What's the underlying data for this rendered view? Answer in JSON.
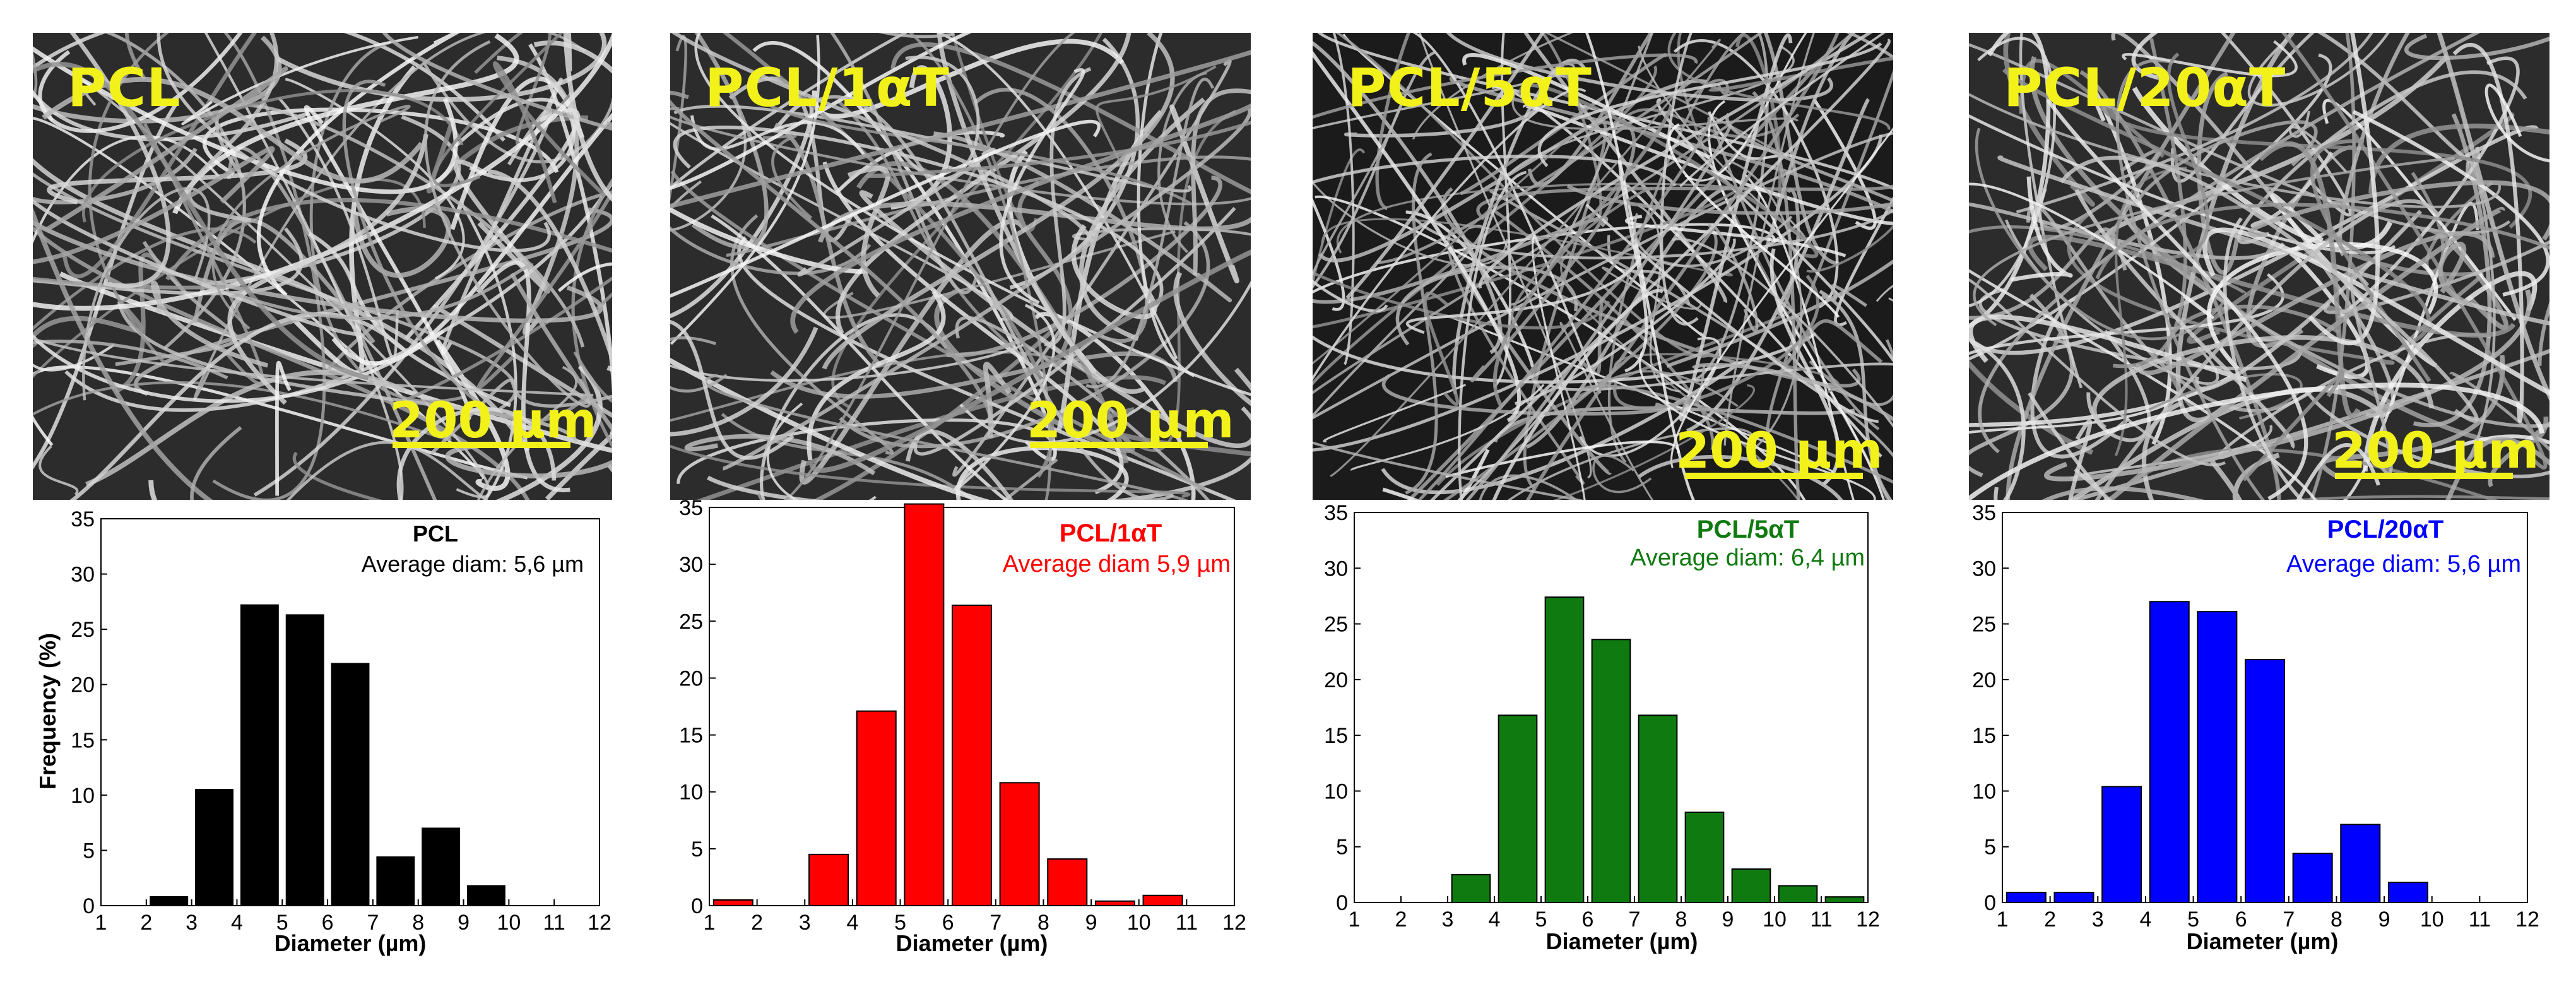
{
  "colors": {
    "pcl": "#000000",
    "pcl_1at": "#ff0000",
    "pcl_5at": "#0f7a0f",
    "pcl_20at": "#0000ff",
    "scale_label": "#f2f21a"
  },
  "panels": [
    {
      "micrograph": {
        "label": "PCL",
        "scale_text": "200 µm"
      },
      "chart": {
        "legend_name": "PCL",
        "legend_avg": "Average diam: 5,6 µm"
      }
    },
    {
      "micrograph": {
        "label": "PCL/1αT",
        "scale_text": "200 µm"
      },
      "chart": {
        "legend_name": "PCL/1αT",
        "legend_avg": "Average diam 5,9 µm"
      }
    },
    {
      "micrograph": {
        "label": "PCL/5αT",
        "scale_text": "200 µm"
      },
      "chart": {
        "legend_name": "PCL/5αT",
        "legend_avg": "Average diam: 6,4 µm"
      }
    },
    {
      "micrograph": {
        "label": "PCL/20αT",
        "scale_text": "200 µm"
      },
      "chart": {
        "legend_name": "PCL/20αT",
        "legend_avg": "Average diam: 5,6 µm"
      }
    }
  ],
  "chart_data": [
    {
      "type": "bar",
      "series": [
        {
          "name": "PCL",
          "color": "#000000",
          "x": [
            2.5,
            3.5,
            4.5,
            5.5,
            6.5,
            7.5,
            8.5,
            9.5
          ],
          "values": [
            0.8,
            10.5,
            27.2,
            26.3,
            21.9,
            4.4,
            7.0,
            1.8
          ]
        }
      ],
      "xlabel": "Diameter (µm)",
      "ylabel": "Frequency (%)",
      "xlim": [
        1,
        12
      ],
      "ylim": [
        0,
        35
      ],
      "xticks": [
        1,
        2,
        3,
        4,
        5,
        6,
        7,
        8,
        9,
        10,
        11,
        12
      ],
      "yticks": [
        0,
        5,
        10,
        15,
        20,
        25,
        30,
        35
      ],
      "legend_position": "top-right",
      "grid": false
    },
    {
      "type": "bar",
      "series": [
        {
          "name": "PCL/1αT",
          "color": "#ff0000",
          "x": [
            1.5,
            3.5,
            4.5,
            5.5,
            6.5,
            7.5,
            8.5,
            9.5,
            10.5
          ],
          "values": [
            0.5,
            4.5,
            17.1,
            35.3,
            26.4,
            10.8,
            4.1,
            0.4,
            0.9
          ]
        }
      ],
      "xlabel": "Diameter (µm)",
      "ylabel": "",
      "xlim": [
        1,
        12
      ],
      "ylim": [
        0,
        35
      ],
      "xticks": [
        1,
        2,
        3,
        4,
        5,
        6,
        7,
        8,
        9,
        10,
        11,
        12
      ],
      "yticks": [
        0,
        5,
        10,
        15,
        20,
        25,
        30,
        35
      ],
      "legend_position": "top-right",
      "grid": false
    },
    {
      "type": "bar",
      "series": [
        {
          "name": "PCL/5αT",
          "color": "#0f7a0f",
          "x": [
            3.5,
            4.5,
            5.5,
            6.5,
            7.5,
            8.5,
            9.5,
            10.5,
            11.5
          ],
          "values": [
            2.5,
            16.8,
            27.4,
            23.6,
            16.8,
            8.1,
            3.0,
            1.5,
            0.5
          ]
        }
      ],
      "xlabel": "Diameter (µm)",
      "ylabel": "",
      "xlim": [
        1,
        12
      ],
      "ylim": [
        0,
        35
      ],
      "xticks": [
        1,
        2,
        3,
        4,
        5,
        6,
        7,
        8,
        9,
        10,
        11,
        12
      ],
      "yticks": [
        0,
        5,
        10,
        15,
        20,
        25,
        30,
        35
      ],
      "legend_position": "top-right",
      "grid": false
    },
    {
      "type": "bar",
      "series": [
        {
          "name": "PCL/20αT",
          "color": "#0000ff",
          "x": [
            1.5,
            2.5,
            3.5,
            4.5,
            5.5,
            6.5,
            7.5,
            8.5,
            9.5
          ],
          "values": [
            0.9,
            0.9,
            10.4,
            27.0,
            26.1,
            21.8,
            4.4,
            7.0,
            1.8
          ]
        }
      ],
      "xlabel": "Diameter (µm)",
      "ylabel": "",
      "xlim": [
        1,
        12
      ],
      "ylim": [
        0,
        35
      ],
      "xticks": [
        1,
        2,
        3,
        4,
        5,
        6,
        7,
        8,
        9,
        10,
        11,
        12
      ],
      "yticks": [
        0,
        5,
        10,
        15,
        20,
        25,
        30,
        35
      ],
      "legend_position": "top-right",
      "grid": false
    }
  ]
}
